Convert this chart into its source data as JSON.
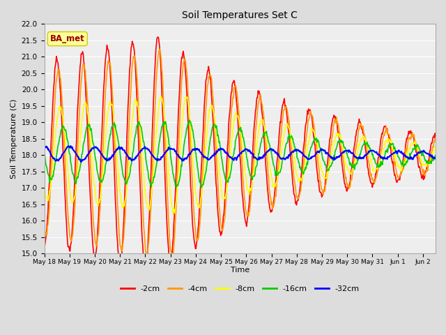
{
  "title": "Soil Temperatures Set C",
  "xlabel": "Time",
  "ylabel": "Soil Temperature (C)",
  "ylim": [
    15.0,
    22.0
  ],
  "yticks": [
    15.0,
    15.5,
    16.0,
    16.5,
    17.0,
    17.5,
    18.0,
    18.5,
    19.0,
    19.5,
    20.0,
    20.5,
    21.0,
    21.5,
    22.0
  ],
  "annotation": "BA_met",
  "annotation_box_color": "#ffff99",
  "annotation_text_color": "#990000",
  "annotation_edge_color": "#cccc00",
  "bg_color": "#dddddd",
  "plot_bg_color": "#eeeeee",
  "grid_color": "#ffffff",
  "lines": [
    {
      "label": "-2cm",
      "color": "#ff0000",
      "lw": 1.2
    },
    {
      "label": "-4cm",
      "color": "#ff9900",
      "lw": 1.2
    },
    {
      "label": "-8cm",
      "color": "#ffff00",
      "lw": 1.2
    },
    {
      "label": "-16cm",
      "color": "#00cc00",
      "lw": 1.2
    },
    {
      "label": "-32cm",
      "color": "#0000ff",
      "lw": 1.5
    }
  ],
  "xticklabels": [
    "May 18",
    "May 19",
    "May 20",
    "May 21",
    "May 22",
    "May 23",
    "May 24",
    "May 25",
    "May 26",
    "May 27",
    "May 28",
    "May 29",
    "May 30",
    "May 31",
    "Jun 1",
    "Jun 2"
  ],
  "num_days": 15.5,
  "points_per_day": 48,
  "base_temp": 18.05
}
